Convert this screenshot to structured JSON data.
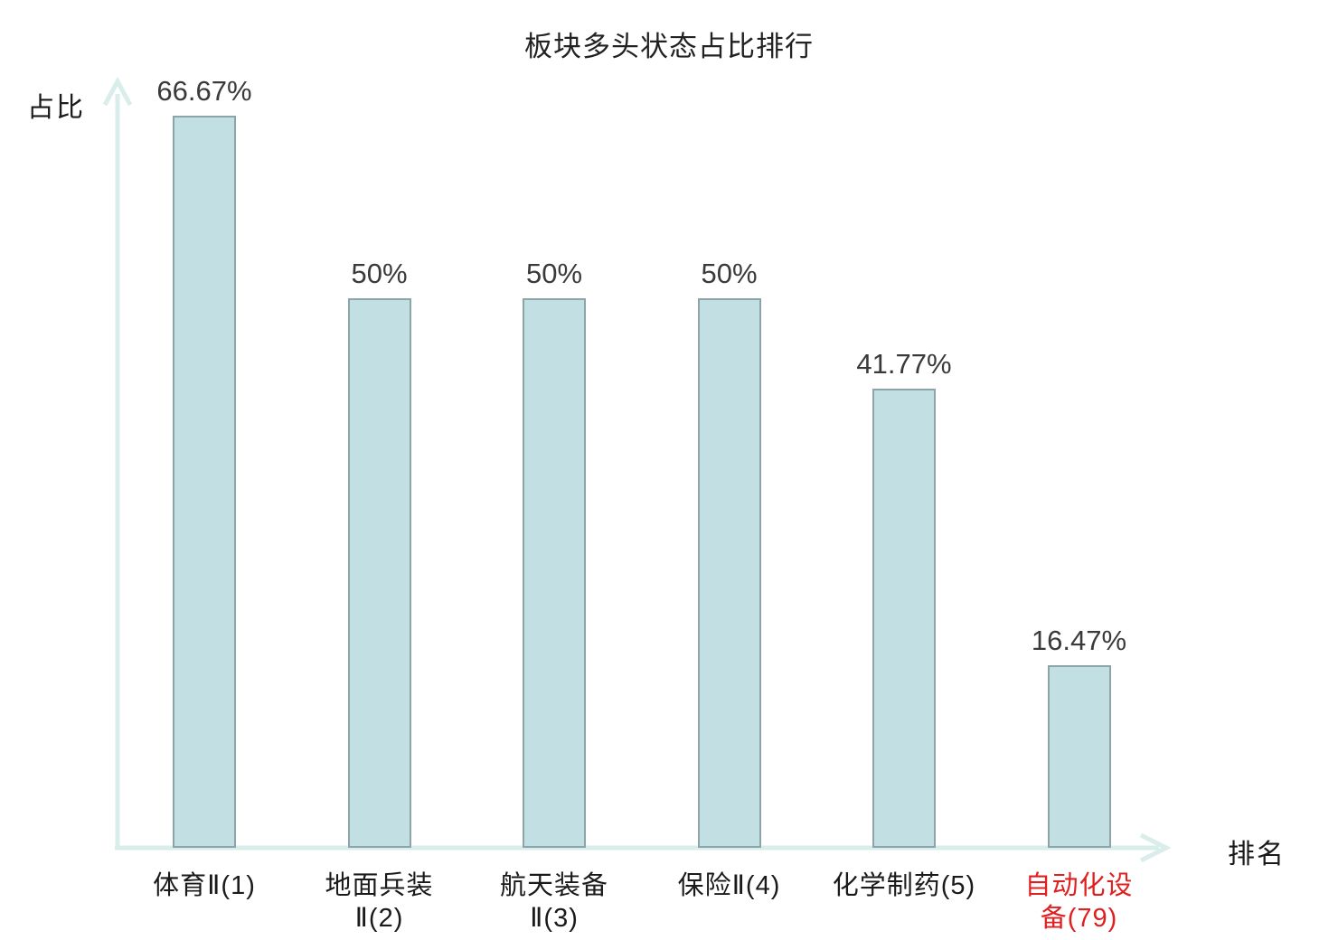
{
  "title": "板块多头状态占比排行",
  "axes": {
    "y_label": "占比",
    "x_label": "排名"
  },
  "colors": {
    "axis": "#d9edeb",
    "bar_fill": "#c2e0e4",
    "bar_border": "#8da4a8",
    "value_label": "#3a3a3a",
    "category_default": "#1a1a1a",
    "category_highlight": "#e02020",
    "title": "#222222"
  },
  "chart_data": {
    "type": "bar",
    "title": "板块多头状态占比排行",
    "xlabel": "排名",
    "ylabel": "占比",
    "categories": [
      "体育Ⅱ(1)",
      "地面兵装Ⅱ(2)",
      "航天装备Ⅱ(3)",
      "保险Ⅱ(4)",
      "化学制药(5)",
      "自动化设备(79)"
    ],
    "category_lines": [
      [
        "体育Ⅱ(1)"
      ],
      [
        "地面兵装",
        "Ⅱ(2)"
      ],
      [
        "航天装备",
        "Ⅱ(3)"
      ],
      [
        "保险Ⅱ(4)"
      ],
      [
        "化学制药(5)"
      ],
      [
        "自动化设",
        "备(79)"
      ]
    ],
    "values": [
      66.67,
      50,
      50,
      50,
      41.77,
      16.47
    ],
    "value_labels": [
      "66.67%",
      "50%",
      "50%",
      "50%",
      "41.77%",
      "16.47%"
    ],
    "highlight_index": 5,
    "grid": false,
    "legend": false,
    "ylim": [
      0,
      70
    ]
  }
}
